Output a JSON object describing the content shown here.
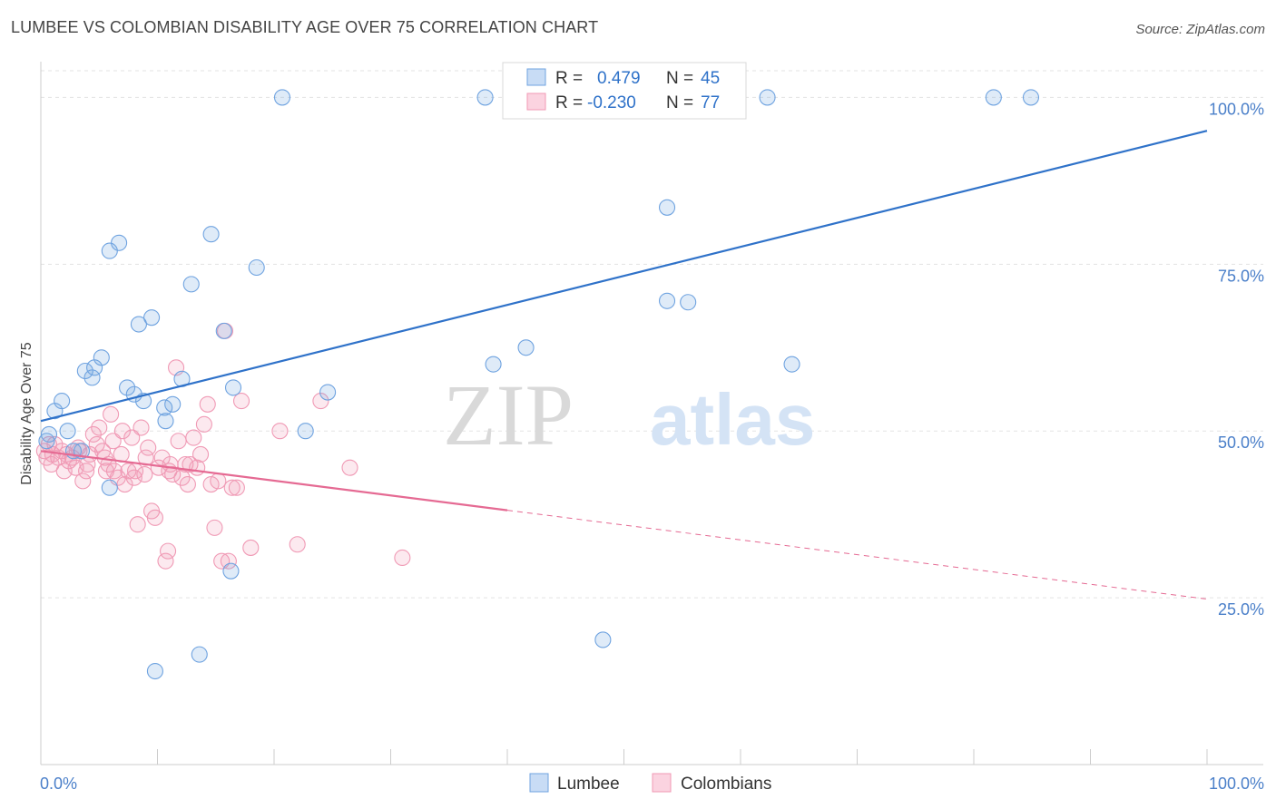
{
  "header": {
    "title": "LUMBEE VS COLOMBIAN DISABILITY AGE OVER 75 CORRELATION CHART",
    "source": "Source: ZipAtlas.com"
  },
  "watermark": {
    "zip": "ZIP",
    "atlas": "atlas"
  },
  "colors": {
    "lumbee": "#6fa3e0",
    "lumbee_line": "#2f72c9",
    "colombians": "#f09ab5",
    "colombians_line": "#e56a93",
    "tick_text": "#4a7fc9",
    "grid": "#e3e3e3"
  },
  "legend": {
    "rows": [
      {
        "r_label": "R =",
        "r_value": "0.479",
        "n_label": "N =",
        "n_value": "45"
      },
      {
        "r_label": "R =",
        "r_value": "-0.230",
        "n_label": "N =",
        "n_value": "77"
      }
    ]
  },
  "bottom_legend": {
    "series": [
      "Lumbee",
      "Colombians"
    ]
  },
  "chart_data": {
    "type": "scatter",
    "title": "LUMBEE VS COLOMBIAN DISABILITY AGE OVER 75 CORRELATION CHART",
    "xlabel": "",
    "ylabel": "Disability Age Over 75",
    "xlim": [
      0,
      100
    ],
    "ylim": [
      0,
      104
    ],
    "x_tick_labels": [
      "0.0%",
      "100.0%"
    ],
    "y_ticks": [
      25,
      50,
      75,
      100
    ],
    "y_tick_labels": [
      "25.0%",
      "50.0%",
      "75.0%",
      "100.0%"
    ],
    "grid": true,
    "legend_position": "top-center",
    "series": [
      {
        "name": "Lumbee",
        "R": 0.479,
        "N": 45,
        "trend": {
          "x0": 0,
          "y0": 51.5,
          "x1": 100,
          "y1": 95.0,
          "dashed_from": null
        },
        "points": [
          [
            0.5,
            48.5
          ],
          [
            0.7,
            49.5
          ],
          [
            1.2,
            53
          ],
          [
            1.8,
            54.5
          ],
          [
            2.3,
            50
          ],
          [
            2.8,
            47
          ],
          [
            3.5,
            47
          ],
          [
            3.8,
            59
          ],
          [
            4.4,
            58
          ],
          [
            4.6,
            59.5
          ],
          [
            5.2,
            61
          ],
          [
            5.9,
            41.5
          ],
          [
            5.9,
            77
          ],
          [
            6.7,
            78.2
          ],
          [
            7.4,
            56.5
          ],
          [
            8.0,
            55.5
          ],
          [
            8.4,
            66
          ],
          [
            8.8,
            54.5
          ],
          [
            9.5,
            67
          ],
          [
            9.8,
            14
          ],
          [
            10.6,
            53.5
          ],
          [
            10.7,
            51.5
          ],
          [
            11.3,
            54
          ],
          [
            12.1,
            57.8
          ],
          [
            12.9,
            72
          ],
          [
            13.6,
            16.5
          ],
          [
            14.6,
            79.5
          ],
          [
            15.7,
            65
          ],
          [
            16.3,
            29
          ],
          [
            16.5,
            56.5
          ],
          [
            18.5,
            74.5
          ],
          [
            20.7,
            100
          ],
          [
            22.7,
            50
          ],
          [
            24.6,
            55.8
          ],
          [
            38.1,
            100
          ],
          [
            38.8,
            60
          ],
          [
            41.6,
            62.5
          ],
          [
            48.2,
            18.7
          ],
          [
            53.7,
            83.5
          ],
          [
            53.7,
            69.5
          ],
          [
            55.5,
            69.3
          ],
          [
            62.3,
            100
          ],
          [
            64.4,
            60
          ],
          [
            81.7,
            100
          ],
          [
            84.9,
            100
          ]
        ]
      },
      {
        "name": "Colombians",
        "R": -0.23,
        "N": 77,
        "trend": {
          "x0": 0,
          "y0": 47.0,
          "x1": 100,
          "y1": 24.8,
          "dashed_from": 40
        },
        "points": [
          [
            0.3,
            47
          ],
          [
            0.5,
            46
          ],
          [
            0.7,
            48
          ],
          [
            0.9,
            45
          ],
          [
            1.2,
            48
          ],
          [
            1.5,
            46
          ],
          [
            1.8,
            47
          ],
          [
            2.0,
            44
          ],
          [
            2.4,
            45.5
          ],
          [
            2.7,
            46
          ],
          [
            3.0,
            44.5
          ],
          [
            3.2,
            47.5
          ],
          [
            3.6,
            42.5
          ],
          [
            3.9,
            44
          ],
          [
            4.2,
            46.5
          ],
          [
            4.5,
            49.5
          ],
          [
            4.8,
            48
          ],
          [
            5.0,
            50.5
          ],
          [
            5.3,
            47
          ],
          [
            5.5,
            46
          ],
          [
            5.8,
            45
          ],
          [
            6.0,
            52.5
          ],
          [
            6.3,
            44
          ],
          [
            6.6,
            43
          ],
          [
            6.9,
            46.5
          ],
          [
            7.2,
            42
          ],
          [
            7.5,
            44
          ],
          [
            7.8,
            49
          ],
          [
            8.0,
            43
          ],
          [
            8.3,
            36
          ],
          [
            8.6,
            50.5
          ],
          [
            8.9,
            43.5
          ],
          [
            9.2,
            47.5
          ],
          [
            9.5,
            38
          ],
          [
            9.8,
            37
          ],
          [
            10.1,
            44.5
          ],
          [
            10.4,
            46
          ],
          [
            10.7,
            30.5
          ],
          [
            10.9,
            32
          ],
          [
            11.1,
            45
          ],
          [
            11.3,
            43.5
          ],
          [
            11.6,
            59.5
          ],
          [
            11.8,
            48.5
          ],
          [
            12.1,
            43
          ],
          [
            12.4,
            45
          ],
          [
            12.8,
            45
          ],
          [
            13.1,
            49
          ],
          [
            13.4,
            44.5
          ],
          [
            13.7,
            46.5
          ],
          [
            14.0,
            51
          ],
          [
            14.3,
            54
          ],
          [
            14.6,
            42
          ],
          [
            14.9,
            35.5
          ],
          [
            15.2,
            42.5
          ],
          [
            15.5,
            30.5
          ],
          [
            15.8,
            65
          ],
          [
            16.1,
            30.5
          ],
          [
            16.4,
            41.5
          ],
          [
            16.8,
            41.5
          ],
          [
            17.2,
            54.5
          ],
          [
            18.0,
            32.5
          ],
          [
            20.5,
            50
          ],
          [
            22.0,
            33
          ],
          [
            24.0,
            54.5
          ],
          [
            26.5,
            44.5
          ],
          [
            31.0,
            31
          ],
          [
            4.0,
            45
          ],
          [
            6.2,
            48.5
          ],
          [
            2.2,
            46.5
          ],
          [
            7.0,
            50
          ],
          [
            9.0,
            46
          ],
          [
            12.6,
            42
          ],
          [
            5.6,
            44
          ],
          [
            3.3,
            47
          ],
          [
            8.1,
            44
          ],
          [
            1.0,
            46.5
          ],
          [
            11.0,
            44
          ]
        ]
      }
    ]
  }
}
